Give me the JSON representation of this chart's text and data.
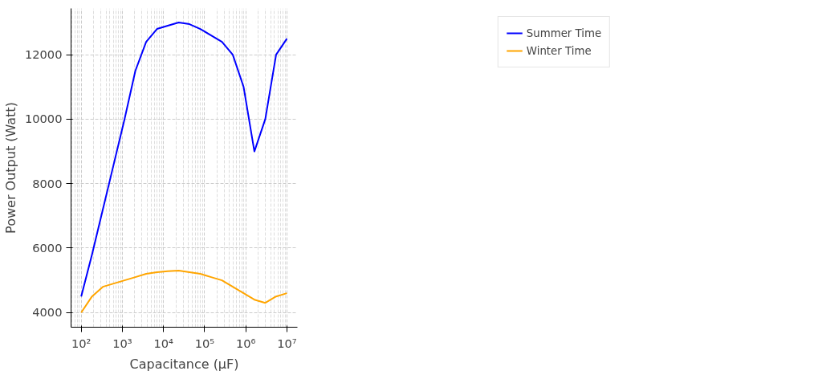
{
  "chart_data": {
    "type": "line",
    "xlabel": "Capacitance (μF)",
    "ylabel": "Power Output (Watt)",
    "log": "x",
    "grid": true,
    "legend": "top right",
    "line_style": "solid",
    "marker": "none",
    "x": [
      100,
      183,
      336,
      616,
      1130,
      2070,
      3790,
      6950,
      12700,
      23400,
      42800,
      78500,
      144000,
      264000,
      483000,
      886000,
      1620000,
      2980000,
      5460000,
      10000000
    ],
    "xlim": [
      56.6,
      18000000
    ],
    "ylim": [
      3545,
      13437
    ],
    "xticks": [
      {
        "value": 100,
        "label": "10²"
      },
      {
        "value": 1000,
        "label": "10³"
      },
      {
        "value": 10000,
        "label": "10⁴"
      },
      {
        "value": 100000,
        "label": "10⁵"
      },
      {
        "value": 1000000,
        "label": "10⁶"
      },
      {
        "value": 10000000,
        "label": "10⁷"
      }
    ],
    "yticks": [
      4000,
      6000,
      8000,
      10000,
      12000
    ],
    "series": [
      {
        "name": "Summer Time",
        "color": "#0000ff",
        "values": [
          4500,
          5800,
          7200,
          8600,
          10000,
          11500,
          12400,
          12800,
          12900,
          13000,
          12950,
          12800,
          12600,
          12400,
          12000,
          11000,
          9000,
          10000,
          12000,
          12500
        ]
      },
      {
        "name": "Winter Time",
        "color": "#ffa500",
        "values": [
          4000,
          4500,
          4800,
          4900,
          5000,
          5100,
          5200,
          5250,
          5280,
          5300,
          5250,
          5200,
          5100,
          5000,
          4800,
          4600,
          4400,
          4300,
          4500,
          4600
        ]
      }
    ]
  }
}
